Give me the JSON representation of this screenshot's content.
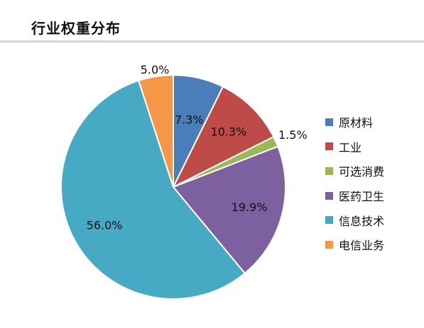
{
  "title": "行业权重分布",
  "chart_data": {
    "type": "pie",
    "legend_placement": "right",
    "categories": [
      "原材料",
      "工业",
      "可选消费",
      "医药卫生",
      "信息技术",
      "电信业务"
    ],
    "values": [
      7.3,
      10.3,
      1.5,
      19.9,
      56.0,
      5.0
    ],
    "labels": [
      "7.3%",
      "10.3%",
      "1.5%",
      "19.9%",
      "56.0%",
      "5.0%"
    ],
    "colors": [
      "#4a7ebb",
      "#be4b48",
      "#98b954",
      "#7d60a0",
      "#46aac5",
      "#f79646"
    ]
  }
}
